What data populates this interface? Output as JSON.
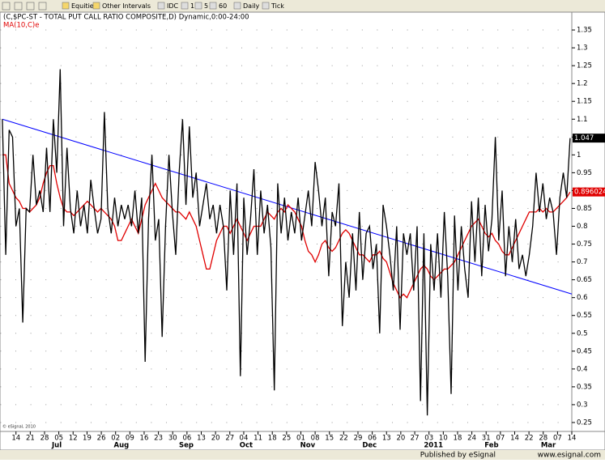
{
  "toolbar": {
    "items": [
      "Equities",
      "Other Intervals",
      "IDC",
      "1",
      "5",
      "60",
      "Daily",
      "Tick"
    ]
  },
  "chart_data": {
    "type": "line",
    "series": [
      {
        "name": "(C,$PC-ST - TOTAL PUT CALL RATIO COMPOSITE,D) Dynamic,0:00-24:00",
        "color": "#000000",
        "last_label": "1.047",
        "values": [
          1.1,
          0.72,
          1.07,
          1.05,
          0.8,
          0.85,
          0.53,
          0.85,
          0.84,
          1.0,
          0.86,
          0.9,
          0.84,
          1.02,
          0.84,
          1.1,
          0.95,
          1.24,
          0.8,
          1.02,
          0.85,
          0.78,
          0.9,
          0.8,
          0.86,
          0.78,
          0.93,
          0.85,
          0.78,
          0.82,
          1.12,
          0.85,
          0.78,
          0.88,
          0.8,
          0.86,
          0.82,
          0.86,
          0.8,
          0.9,
          0.78,
          0.88,
          0.42,
          0.82,
          1.0,
          0.76,
          0.82,
          0.49,
          0.8,
          1.0,
          0.84,
          0.72,
          0.95,
          1.1,
          0.86,
          1.08,
          0.88,
          0.95,
          0.8,
          0.86,
          0.92,
          0.82,
          0.86,
          0.78,
          0.86,
          0.8,
          0.62,
          0.9,
          0.72,
          0.92,
          0.38,
          0.88,
          0.72,
          0.82,
          0.96,
          0.72,
          0.9,
          0.78,
          0.86,
          0.74,
          0.34,
          0.92,
          0.78,
          0.88,
          0.76,
          0.84,
          0.78,
          0.88,
          0.76,
          0.83,
          0.9,
          0.8,
          0.98,
          0.9,
          0.8,
          0.88,
          0.66,
          0.84,
          0.8,
          0.92,
          0.52,
          0.7,
          0.6,
          0.78,
          0.62,
          0.84,
          0.65,
          0.78,
          0.8,
          0.68,
          0.75,
          0.5,
          0.86,
          0.8,
          0.72,
          0.62,
          0.8,
          0.51,
          0.78,
          0.72,
          0.78,
          0.62,
          0.8,
          0.31,
          0.78,
          0.27,
          0.75,
          0.62,
          0.78,
          0.6,
          0.84,
          0.66,
          0.33,
          0.83,
          0.62,
          0.8,
          0.68,
          0.6,
          0.87,
          0.7,
          0.88,
          0.66,
          0.86,
          0.73,
          0.82,
          1.05,
          0.76,
          0.9,
          0.66,
          0.8,
          0.7,
          0.82,
          0.68,
          0.72,
          0.66,
          0.72,
          0.8,
          0.95,
          0.84,
          0.92,
          0.82,
          0.88,
          0.84,
          0.72,
          0.88,
          0.95,
          0.88,
          1.047
        ]
      },
      {
        "name": "MA(10,C)e",
        "color": "#e00000",
        "last_label": "0.896024",
        "values": [
          1.0,
          1.0,
          0.92,
          0.9,
          0.88,
          0.87,
          0.85,
          0.85,
          0.84,
          0.85,
          0.86,
          0.88,
          0.92,
          0.95,
          0.97,
          0.97,
          0.92,
          0.88,
          0.85,
          0.84,
          0.84,
          0.83,
          0.84,
          0.85,
          0.86,
          0.87,
          0.86,
          0.85,
          0.84,
          0.85,
          0.84,
          0.83,
          0.82,
          0.8,
          0.76,
          0.76,
          0.78,
          0.8,
          0.82,
          0.8,
          0.78,
          0.82,
          0.86,
          0.88,
          0.9,
          0.92,
          0.9,
          0.88,
          0.87,
          0.86,
          0.85,
          0.84,
          0.84,
          0.83,
          0.82,
          0.84,
          0.82,
          0.8,
          0.76,
          0.72,
          0.68,
          0.68,
          0.72,
          0.76,
          0.78,
          0.8,
          0.8,
          0.78,
          0.8,
          0.82,
          0.8,
          0.78,
          0.76,
          0.78,
          0.8,
          0.8,
          0.8,
          0.82,
          0.84,
          0.83,
          0.82,
          0.84,
          0.85,
          0.84,
          0.86,
          0.85,
          0.84,
          0.82,
          0.8,
          0.76,
          0.73,
          0.72,
          0.7,
          0.72,
          0.75,
          0.76,
          0.74,
          0.73,
          0.74,
          0.76,
          0.78,
          0.79,
          0.78,
          0.76,
          0.74,
          0.72,
          0.72,
          0.71,
          0.7,
          0.72,
          0.72,
          0.73,
          0.71,
          0.7,
          0.67,
          0.64,
          0.62,
          0.6,
          0.61,
          0.6,
          0.62,
          0.64,
          0.66,
          0.68,
          0.69,
          0.68,
          0.66,
          0.65,
          0.66,
          0.67,
          0.68,
          0.68,
          0.69,
          0.7,
          0.72,
          0.74,
          0.76,
          0.78,
          0.8,
          0.81,
          0.82,
          0.8,
          0.78,
          0.77,
          0.78,
          0.76,
          0.75,
          0.73,
          0.72,
          0.72,
          0.74,
          0.76,
          0.78,
          0.8,
          0.82,
          0.84,
          0.84,
          0.84,
          0.85,
          0.84,
          0.85,
          0.84,
          0.84,
          0.85,
          0.86,
          0.87,
          0.88,
          0.896024
        ]
      }
    ],
    "trend_line": {
      "color": "#0000ff",
      "x": [
        0,
        167.5
      ],
      "values": [
        1.1,
        0.61
      ]
    },
    "xlim": [
      -0.7,
      167.5
    ],
    "ylim": [
      0.225,
      1.4
    ],
    "yticks": [
      0.25,
      0.3,
      0.35,
      0.4,
      0.45,
      0.5,
      0.55,
      0.6,
      0.65,
      0.7,
      0.75,
      0.8,
      0.85,
      0.9,
      0.95,
      1,
      1.05,
      1.1,
      1.15,
      1.2,
      1.25,
      1.3,
      1.35
    ],
    "xticks": [
      {
        "value": 4.0,
        "label": "14"
      },
      {
        "value": 8.2,
        "label": "21"
      },
      {
        "value": 12.4,
        "label": "28"
      },
      {
        "value": 16.6,
        "label": "05"
      },
      {
        "value": 20.8,
        "label": "12"
      },
      {
        "value": 24.9,
        "label": "19"
      },
      {
        "value": 29.1,
        "label": "26"
      },
      {
        "value": 33.3,
        "label": "02"
      },
      {
        "value": 37.5,
        "label": "09"
      },
      {
        "value": 41.7,
        "label": "16"
      },
      {
        "value": 45.9,
        "label": "23"
      },
      {
        "value": 50.1,
        "label": "30"
      },
      {
        "value": 54.3,
        "label": "06"
      },
      {
        "value": 58.5,
        "label": "13"
      },
      {
        "value": 62.7,
        "label": "20"
      },
      {
        "value": 66.9,
        "label": "27"
      },
      {
        "value": 71.0,
        "label": "04"
      },
      {
        "value": 75.2,
        "label": "11"
      },
      {
        "value": 79.4,
        "label": "18"
      },
      {
        "value": 83.6,
        "label": "25"
      },
      {
        "value": 87.8,
        "label": "01"
      },
      {
        "value": 92.0,
        "label": "08"
      },
      {
        "value": 96.2,
        "label": "15"
      },
      {
        "value": 100.4,
        "label": "22"
      },
      {
        "value": 104.6,
        "label": "29"
      },
      {
        "value": 108.8,
        "label": "06"
      },
      {
        "value": 113.0,
        "label": "13"
      },
      {
        "value": 117.2,
        "label": "20"
      },
      {
        "value": 121.3,
        "label": "27"
      },
      {
        "value": 125.5,
        "label": "03"
      },
      {
        "value": 129.7,
        "label": "10"
      },
      {
        "value": 133.9,
        "label": "18"
      },
      {
        "value": 138.1,
        "label": "24"
      },
      {
        "value": 142.3,
        "label": "31"
      },
      {
        "value": 146.5,
        "label": "07"
      },
      {
        "value": 150.7,
        "label": "14"
      },
      {
        "value": 154.9,
        "label": "22"
      },
      {
        "value": 159.1,
        "label": "28"
      },
      {
        "value": 163.3,
        "label": "07"
      },
      {
        "value": 167.5,
        "label": "14"
      }
    ],
    "month_labels": [
      {
        "value": 16.0,
        "label": "Jul"
      },
      {
        "value": 35.0,
        "label": "Aug"
      },
      {
        "value": 54.1,
        "label": "Sep"
      },
      {
        "value": 71.7,
        "label": "Oct"
      },
      {
        "value": 89.8,
        "label": "Nov"
      },
      {
        "value": 108.0,
        "label": "Dec"
      },
      {
        "value": 126.8,
        "label": "2011"
      },
      {
        "value": 143.9,
        "label": "Feb"
      },
      {
        "value": 160.6,
        "label": "Mar"
      }
    ],
    "grid": true,
    "copyright": "© eSignal, 2010"
  },
  "footer": {
    "published": "Published by eSignal",
    "url": "www.esignal.com"
  }
}
